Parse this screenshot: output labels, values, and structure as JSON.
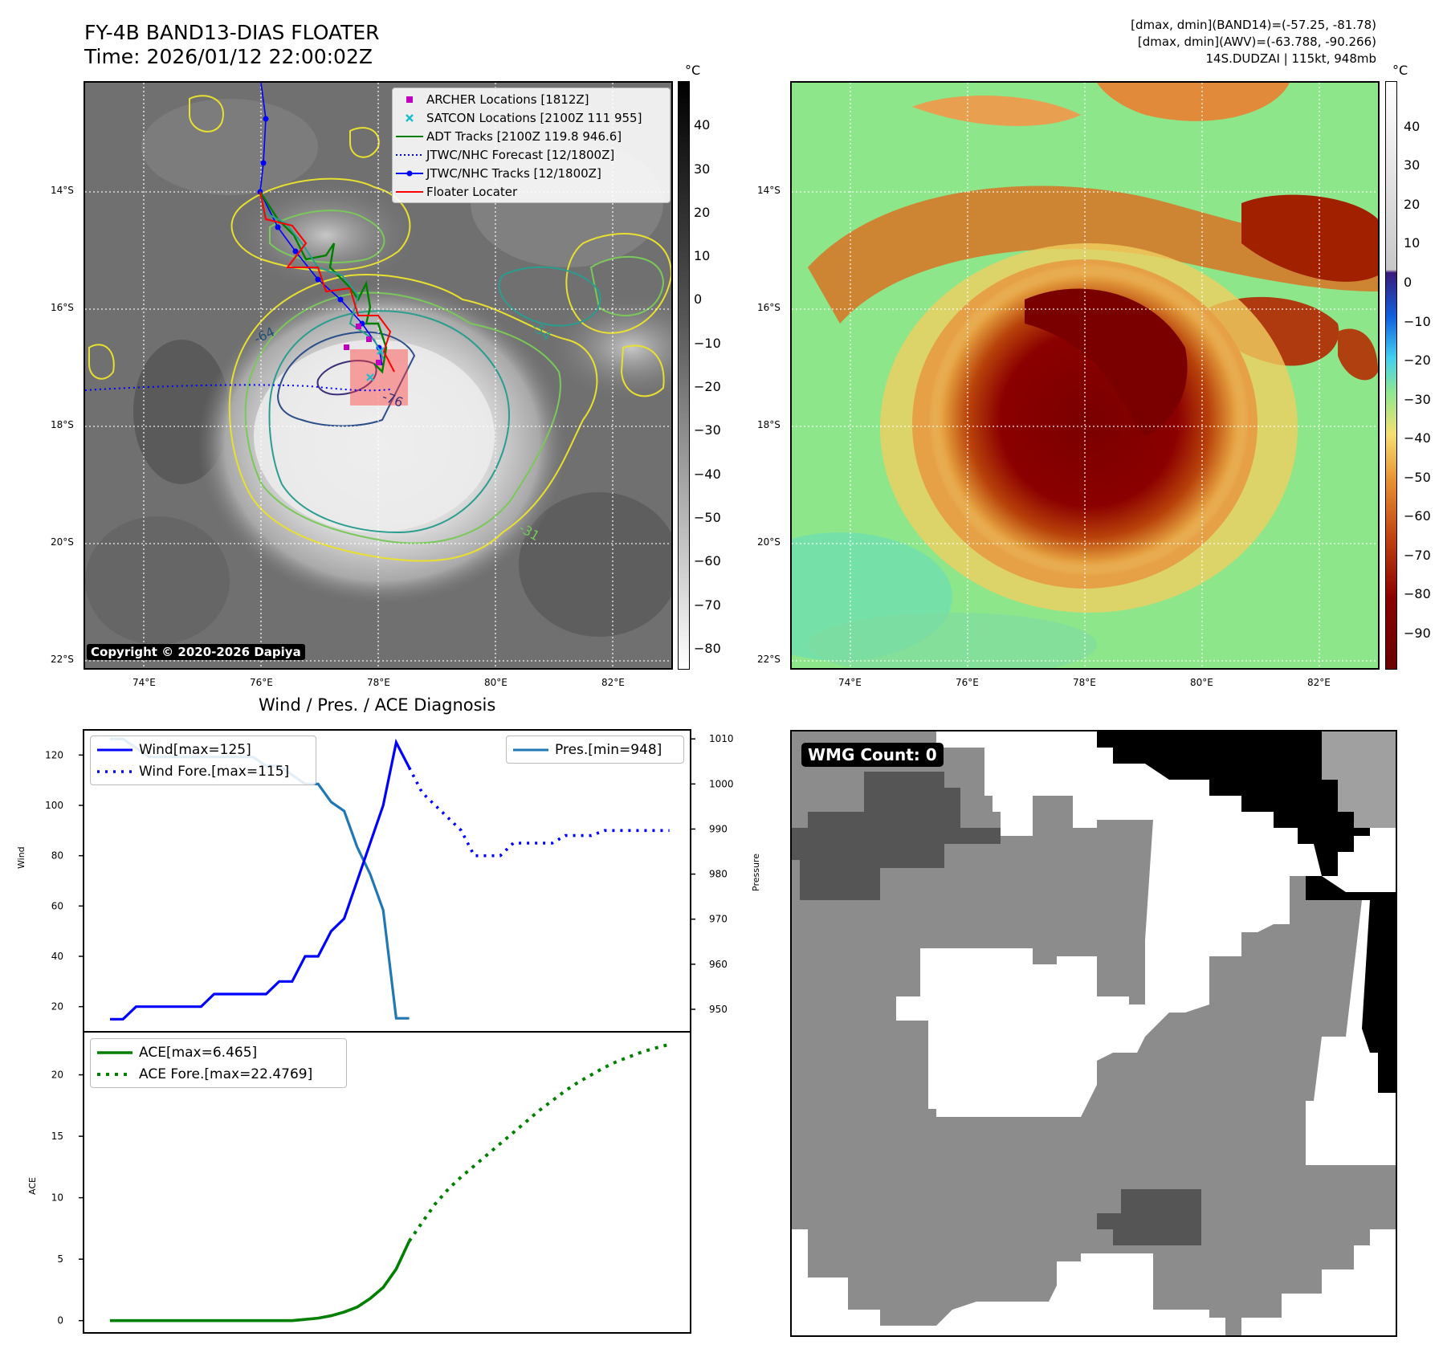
{
  "header": {
    "title_line1": "FY-4B BAND13-DIAS FLOATER",
    "title_line2": "Time: 2026/01/12 22:00:02Z",
    "info_line1": "[dmax, dmin](BAND14)=(-57.25, -81.78)",
    "info_line2": "[dmax, dmin](AWV)=(-63.788, -90.266)",
    "info_line3": "14S.DUDZAI | 115kt, 948mb"
  },
  "map": {
    "lat_labels": [
      "14°S",
      "16°S",
      "18°S",
      "20°S",
      "22°S"
    ],
    "lon_labels": [
      "74°E",
      "76°E",
      "78°E",
      "80°E",
      "82°E"
    ],
    "copyright": "Copyright © 2020-2026 Dapiya",
    "legend": [
      {
        "label": "ARCHER Locations [1812Z]",
        "color": "#c000c0",
        "marker": "square"
      },
      {
        "label": "SATCON Locations [2100Z 111 955]",
        "color": "#17becf",
        "marker": "x"
      },
      {
        "label": "ADT Tracks [2100Z 119.8 946.6]",
        "color": "#007f00",
        "marker": "line"
      },
      {
        "label": "JTWC/NHC Forecast [12/1800Z]",
        "color": "#0000ff",
        "marker": "dotted"
      },
      {
        "label": "JTWC/NHC Tracks [12/1800Z]",
        "color": "#0000ff",
        "marker": "line-dot"
      },
      {
        "label": "Floater Locater",
        "color": "#ff0000",
        "marker": "line"
      }
    ],
    "contour_labels": [
      "-31",
      "-54",
      "-64",
      "-76"
    ],
    "left_colorbar": {
      "unit": "°C",
      "ticks": [
        "40",
        "30",
        "20",
        "10",
        "0",
        "−10",
        "−20",
        "−30",
        "−40",
        "−50",
        "−60",
        "−70",
        "−80"
      ]
    },
    "right_colorbar": {
      "unit": "°C",
      "ticks": [
        "40",
        "30",
        "20",
        "10",
        "0",
        "−10",
        "−20",
        "−30",
        "−40",
        "−50",
        "−60",
        "−70",
        "−80",
        "−90"
      ]
    }
  },
  "diagnosis": {
    "title": "Wind / Pres. / ACE Diagnosis",
    "wind_ylabel": "Wind",
    "pres_ylabel": "Pressure",
    "ace_ylabel": "ACE",
    "wmg_count": "WMG Count: 0"
  },
  "chart_data": [
    {
      "type": "line",
      "title": "Wind / Pres. / ACE Diagnosis",
      "ylabel": "Wind",
      "ylim": [
        10,
        130
      ],
      "yticks": [
        20,
        40,
        60,
        80,
        100,
        120
      ],
      "series": [
        {
          "name": "Wind[max=125]",
          "color": "#0000ff",
          "style": "solid",
          "x": [
            0,
            1,
            2,
            3,
            4,
            5,
            6,
            7,
            8,
            9,
            10,
            11,
            12,
            13,
            14,
            15,
            16,
            17,
            18,
            19,
            20,
            21,
            22,
            23,
            24
          ],
          "y": [
            15,
            15,
            20,
            20,
            20,
            20,
            20,
            20,
            25,
            25,
            25,
            25,
            25,
            30,
            30,
            40,
            40,
            50,
            55,
            70,
            85,
            100,
            125,
            115,
            null
          ]
        },
        {
          "name": "Wind Fore.[max=115]",
          "color": "#0000ff",
          "style": "dotted",
          "x": [
            23,
            24,
            25,
            26,
            27,
            28,
            29,
            30,
            31,
            32,
            33,
            34,
            35,
            36,
            37,
            38,
            39,
            40,
            41,
            42,
            43
          ],
          "y": [
            115,
            105,
            100,
            95,
            90,
            80,
            80,
            80,
            85,
            85,
            85,
            85,
            88,
            88,
            88,
            90,
            90,
            90,
            90,
            90,
            90
          ]
        }
      ]
    },
    {
      "type": "line",
      "ylabel": "Pressure",
      "ylim": [
        945,
        1012
      ],
      "yticks": [
        950,
        960,
        970,
        980,
        990,
        1000,
        1010
      ],
      "series": [
        {
          "name": "Pres.[min=948]",
          "color": "#1f77b4",
          "style": "solid",
          "x": [
            0,
            1,
            2,
            3,
            4,
            5,
            6,
            7,
            8,
            9,
            10,
            11,
            12,
            13,
            14,
            15,
            16,
            17,
            18,
            19,
            20,
            21,
            22,
            23
          ],
          "y": [
            1010,
            1010,
            1008,
            1006,
            1006,
            1006,
            1006,
            1006,
            1006,
            1006,
            1006,
            1006,
            1004,
            1004,
            1002,
            1000,
            1000,
            996,
            994,
            986,
            980,
            972,
            948,
            948
          ]
        }
      ]
    },
    {
      "type": "line",
      "ylabel": "ACE",
      "ylim": [
        -1,
        23.5
      ],
      "yticks": [
        0,
        5,
        10,
        15,
        20
      ],
      "series": [
        {
          "name": "ACE[max=6.465]",
          "color": "#007f00",
          "style": "solid",
          "x": [
            0,
            1,
            2,
            3,
            4,
            5,
            6,
            7,
            8,
            9,
            10,
            11,
            12,
            13,
            14,
            15,
            16,
            17,
            18,
            19,
            20,
            21,
            22,
            23
          ],
          "y": [
            0,
            0,
            0,
            0,
            0,
            0,
            0,
            0,
            0,
            0,
            0,
            0,
            0,
            0,
            0,
            0.1,
            0.2,
            0.4,
            0.7,
            1.1,
            1.8,
            2.7,
            4.2,
            6.465
          ]
        },
        {
          "name": "ACE Fore.[max=22.4769]",
          "color": "#007f00",
          "style": "dotted",
          "x": [
            23,
            24,
            25,
            26,
            27,
            28,
            29,
            30,
            31,
            32,
            33,
            34,
            35,
            36,
            37,
            38,
            39,
            40,
            41,
            42,
            43
          ],
          "y": [
            6.465,
            8.0,
            9.5,
            10.7,
            11.7,
            12.6,
            13.5,
            14.4,
            15.3,
            16.2,
            17.1,
            17.9,
            18.7,
            19.4,
            20.0,
            20.6,
            21.1,
            21.5,
            21.9,
            22.2,
            22.4769
          ]
        }
      ]
    }
  ]
}
